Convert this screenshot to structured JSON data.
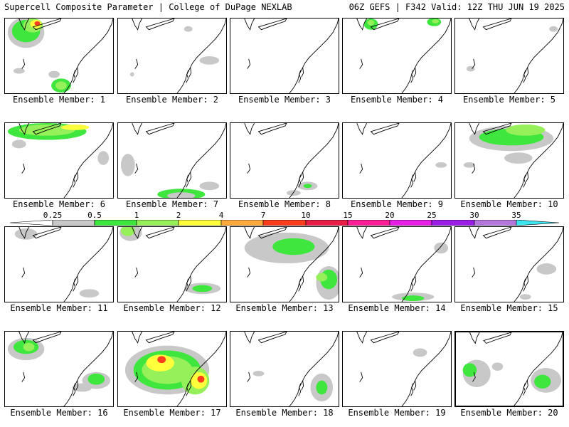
{
  "header": {
    "left": "Supercell Composite Parameter | College of DuPage NEXLAB",
    "right": "06Z GEFS | F342 Valid: 12Z THU JUN 19 2025"
  },
  "colorbar": {
    "values": [
      "0.25",
      "0.5",
      "1",
      "2",
      "4",
      "7",
      "10",
      "15",
      "20",
      "25",
      "30",
      "35"
    ],
    "colors": [
      "#c8c8c8",
      "#3ee63e",
      "#96f05a",
      "#ffff3c",
      "#ffaa3c",
      "#ff3c1e",
      "#e81e46",
      "#ff1e96",
      "#e61ee6",
      "#9a1ee6",
      "#b478dc",
      "#3ce6f0"
    ]
  },
  "members": [
    {
      "label": "Ensemble Member: 1"
    },
    {
      "label": "Ensemble Member: 2"
    },
    {
      "label": "Ensemble Member: 3"
    },
    {
      "label": "Ensemble Member: 4"
    },
    {
      "label": "Ensemble Member: 5"
    },
    {
      "label": "Ensemble Member: 6"
    },
    {
      "label": "Ensemble Member: 7"
    },
    {
      "label": "Ensemble Member: 8"
    },
    {
      "label": "Ensemble Member: 9"
    },
    {
      "label": "Ensemble Member: 10"
    },
    {
      "label": "Ensemble Member: 11"
    },
    {
      "label": "Ensemble Member: 12"
    },
    {
      "label": "Ensemble Member: 13"
    },
    {
      "label": "Ensemble Member: 14"
    },
    {
      "label": "Ensemble Member: 15"
    },
    {
      "label": "Ensemble Member: 16"
    },
    {
      "label": "Ensemble Member: 17"
    },
    {
      "label": "Ensemble Member: 18"
    },
    {
      "label": "Ensemble Member: 19"
    },
    {
      "label": "Ensemble Member: 20",
      "selected": true
    }
  ]
}
